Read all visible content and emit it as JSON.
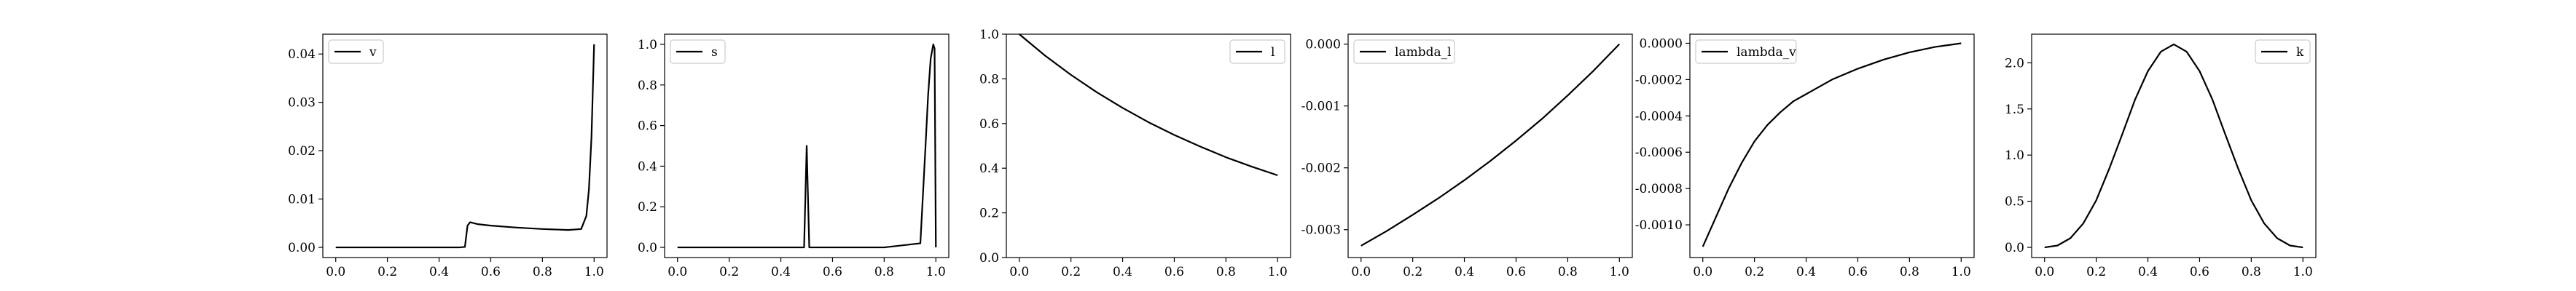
{
  "chart_data": [
    {
      "type": "line",
      "legend": "v",
      "legend_loc": "upper left",
      "xlim": [
        -0.05,
        1.05
      ],
      "ylim": [
        -0.0021,
        0.0441
      ],
      "xticks": [
        "0.0",
        "0.2",
        "0.4",
        "0.6",
        "0.8",
        "1.0"
      ],
      "yticks": [
        "0.00",
        "0.01",
        "0.02",
        "0.03",
        "0.04"
      ],
      "x": [
        0,
        0.1,
        0.2,
        0.3,
        0.4,
        0.48,
        0.5,
        0.51,
        0.52,
        0.55,
        0.6,
        0.7,
        0.8,
        0.9,
        0.95,
        0.97,
        0.98,
        0.99,
        1.0
      ],
      "y": [
        0,
        0,
        0,
        0,
        0,
        0,
        0.0001,
        0.0045,
        0.0052,
        0.0048,
        0.0045,
        0.0041,
        0.0038,
        0.0036,
        0.0038,
        0.0065,
        0.012,
        0.023,
        0.042
      ]
    },
    {
      "type": "line",
      "legend": "s",
      "legend_loc": "upper left",
      "xlim": [
        -0.05,
        1.05
      ],
      "ylim": [
        -0.05,
        1.05
      ],
      "xticks": [
        "0.0",
        "0.2",
        "0.4",
        "0.6",
        "0.8",
        "1.0"
      ],
      "yticks": [
        "0.0",
        "0.2",
        "0.4",
        "0.6",
        "0.8",
        "1.0"
      ],
      "x": [
        0,
        0.2,
        0.4,
        0.49,
        0.5,
        0.51,
        0.6,
        0.8,
        0.94,
        0.96,
        0.97,
        0.98,
        0.99,
        0.995,
        1.0
      ],
      "y": [
        0,
        0,
        0,
        0,
        0.5,
        0,
        0,
        0,
        0.02,
        0.5,
        0.75,
        0.93,
        1.0,
        0.98,
        0
      ]
    },
    {
      "type": "line",
      "legend": "l",
      "legend_loc": "upper right",
      "xlim": [
        -0.05,
        1.05
      ],
      "ylim": [
        0.0,
        1.0
      ],
      "xticks": [
        "0.0",
        "0.2",
        "0.4",
        "0.6",
        "0.8",
        "1.0"
      ],
      "yticks": [
        "0.0",
        "0.2",
        "0.4",
        "0.6",
        "0.8",
        "1.0"
      ],
      "x": [
        0,
        0.1,
        0.2,
        0.3,
        0.4,
        0.5,
        0.6,
        0.7,
        0.8,
        0.9,
        1.0
      ],
      "y": [
        1.0,
        0.904,
        0.818,
        0.74,
        0.67,
        0.606,
        0.549,
        0.497,
        0.449,
        0.407,
        0.368
      ]
    },
    {
      "type": "line",
      "legend": "lambda_l",
      "legend_loc": "upper left",
      "xlim": [
        -0.05,
        1.05
      ],
      "ylim": [
        -0.00345,
        0.00016
      ],
      "xticks": [
        "0.0",
        "0.2",
        "0.4",
        "0.6",
        "0.8",
        "1.0"
      ],
      "yticks": [
        "0.000",
        "-0.001",
        "-0.002",
        "-0.003"
      ],
      "ytick_values": [
        0,
        -0.001,
        -0.002,
        -0.003
      ],
      "x": [
        0,
        0.1,
        0.2,
        0.3,
        0.4,
        0.5,
        0.6,
        0.7,
        0.8,
        0.9,
        1.0
      ],
      "y": [
        -0.00326,
        -0.00302,
        -0.00276,
        -0.00249,
        -0.0022,
        -0.00189,
        -0.00156,
        -0.00121,
        -0.00083,
        -0.00043,
        0
      ]
    },
    {
      "type": "line",
      "legend": "lambda_v",
      "legend_loc": "upper left",
      "xlim": [
        -0.05,
        1.05
      ],
      "ylim": [
        -0.00118,
        5e-05
      ],
      "xticks": [
        "0.0",
        "0.2",
        "0.4",
        "0.6",
        "0.8",
        "1.0"
      ],
      "yticks": [
        "0.0000",
        "-0.0002",
        "-0.0004",
        "-0.0006",
        "-0.0008",
        "-0.0010"
      ],
      "ytick_values": [
        0,
        -0.0002,
        -0.0004,
        -0.0006,
        -0.0008,
        -0.001
      ],
      "x": [
        0,
        0.05,
        0.1,
        0.15,
        0.2,
        0.25,
        0.3,
        0.35,
        0.4,
        0.5,
        0.6,
        0.7,
        0.8,
        0.9,
        0.95,
        1.0
      ],
      "y": [
        -0.00112,
        -0.00096,
        -0.0008,
        -0.00066,
        -0.00054,
        -0.00045,
        -0.00038,
        -0.00032,
        -0.00028,
        -0.0002,
        -0.00014,
        -9e-05,
        -5e-05,
        -2e-05,
        -1e-05,
        0
      ]
    },
    {
      "type": "line",
      "legend": "k",
      "legend_loc": "upper right",
      "xlim": [
        -0.05,
        1.05
      ],
      "ylim": [
        -0.11,
        2.31
      ],
      "xticks": [
        "0.0",
        "0.2",
        "0.4",
        "0.6",
        "0.8",
        "1.0"
      ],
      "yticks": [
        "0.0",
        "0.5",
        "1.0",
        "1.5",
        "2.0"
      ],
      "x": [
        0,
        0.05,
        0.1,
        0.15,
        0.2,
        0.25,
        0.3,
        0.35,
        0.4,
        0.45,
        0.5,
        0.55,
        0.6,
        0.65,
        0.7,
        0.75,
        0.8,
        0.85,
        0.9,
        0.95,
        1.0
      ],
      "y": [
        0,
        0.02,
        0.1,
        0.26,
        0.51,
        0.85,
        1.22,
        1.6,
        1.91,
        2.12,
        2.2,
        2.12,
        1.91,
        1.6,
        1.22,
        0.85,
        0.51,
        0.26,
        0.1,
        0.02,
        0
      ]
    }
  ]
}
